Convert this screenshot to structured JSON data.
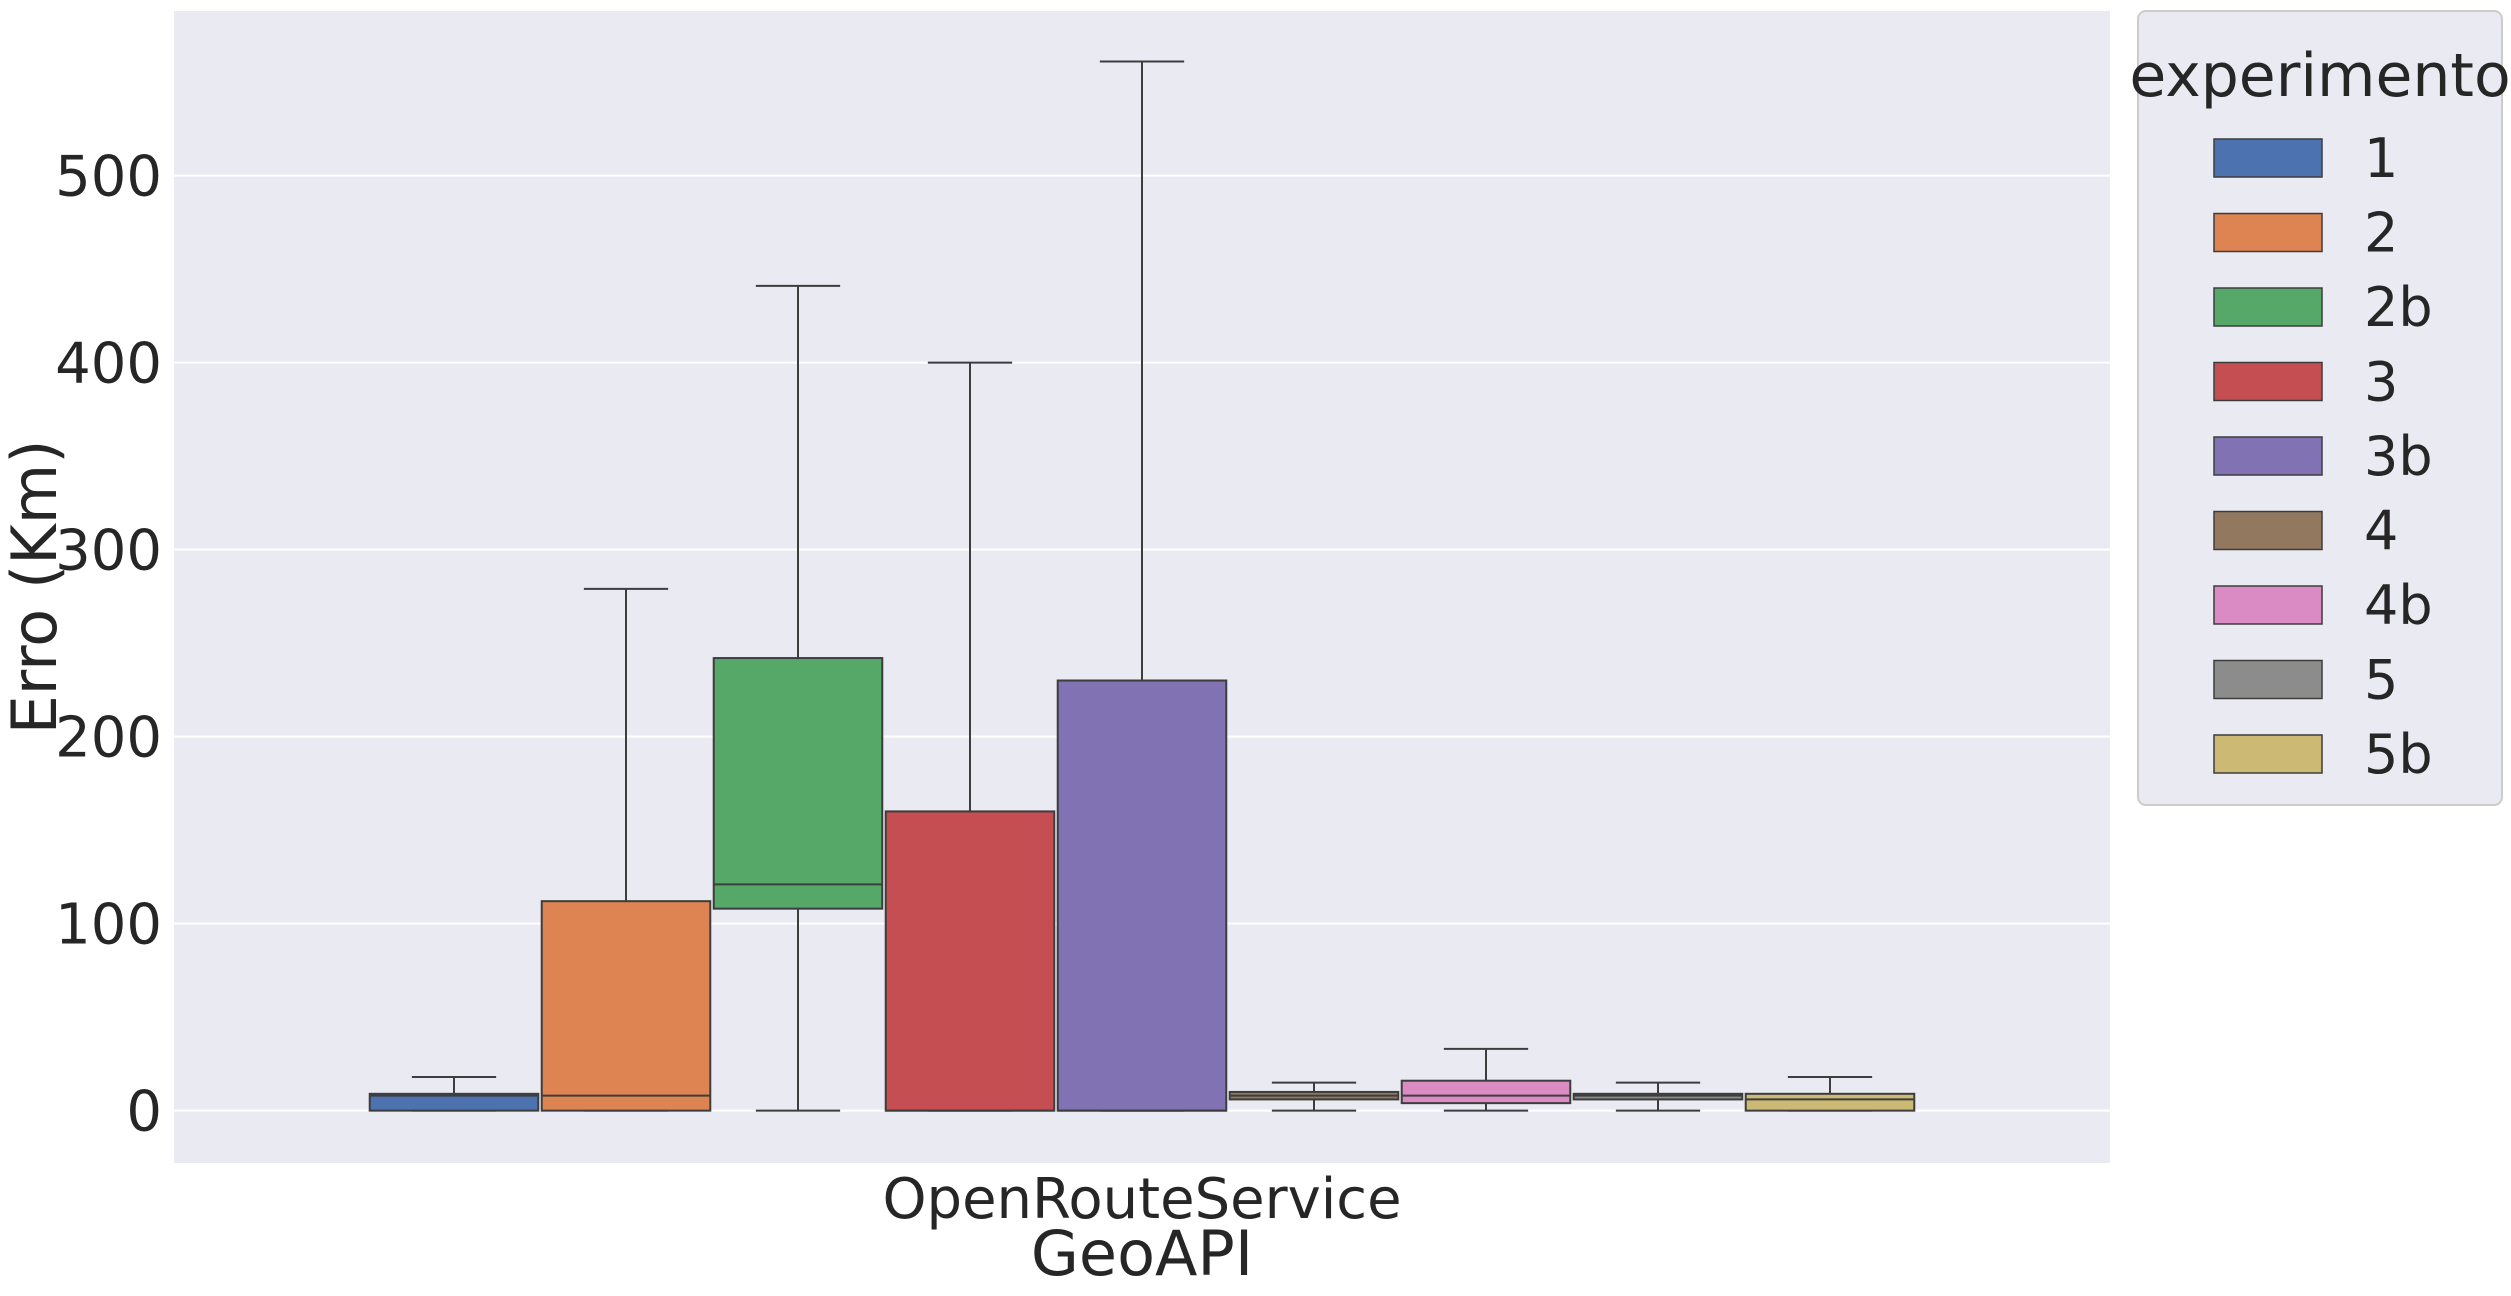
{
  "chart_data": {
    "type": "box",
    "xlabel": "GeoAPI",
    "ylabel": "Erro (Km)",
    "categories": [
      "OpenRouteService"
    ],
    "yticks": [
      0,
      100,
      200,
      300,
      400,
      500
    ],
    "ylim": [
      -28,
      588
    ],
    "grid": true,
    "legend": {
      "title": "experimento",
      "placement": "outside-right"
    },
    "series": [
      {
        "name": "1",
        "color": "#4c72b0",
        "whisker_low": 0,
        "q1": 0,
        "median": 8,
        "q3": 9,
        "whisker_high": 18
      },
      {
        "name": "2",
        "color": "#dd8452",
        "whisker_low": 0,
        "q1": 0,
        "median": 8,
        "q3": 112,
        "whisker_high": 279
      },
      {
        "name": "2b",
        "color": "#55a868",
        "whisker_low": 0,
        "q1": 108,
        "median": 121,
        "q3": 242,
        "whisker_high": 441
      },
      {
        "name": "3",
        "color": "#c44e52",
        "whisker_low": 0,
        "q1": 0,
        "median": 0,
        "q3": 160,
        "whisker_high": 400
      },
      {
        "name": "3b",
        "color": "#8172b3",
        "whisker_low": 0,
        "q1": 0,
        "median": 0,
        "q3": 230,
        "whisker_high": 561
      },
      {
        "name": "4",
        "color": "#937860",
        "whisker_low": 0,
        "q1": 6,
        "median": 8,
        "q3": 10,
        "whisker_high": 15
      },
      {
        "name": "4b",
        "color": "#da8bc3",
        "whisker_low": 0,
        "q1": 4,
        "median": 8,
        "q3": 16,
        "whisker_high": 33
      },
      {
        "name": "5",
        "color": "#8c8c8c",
        "whisker_low": 0,
        "q1": 6,
        "median": 8,
        "q3": 9,
        "whisker_high": 15
      },
      {
        "name": "5b",
        "color": "#ccb974",
        "whisker_low": 0,
        "q1": 0,
        "median": 6,
        "q3": 9,
        "whisker_high": 18
      }
    ]
  }
}
